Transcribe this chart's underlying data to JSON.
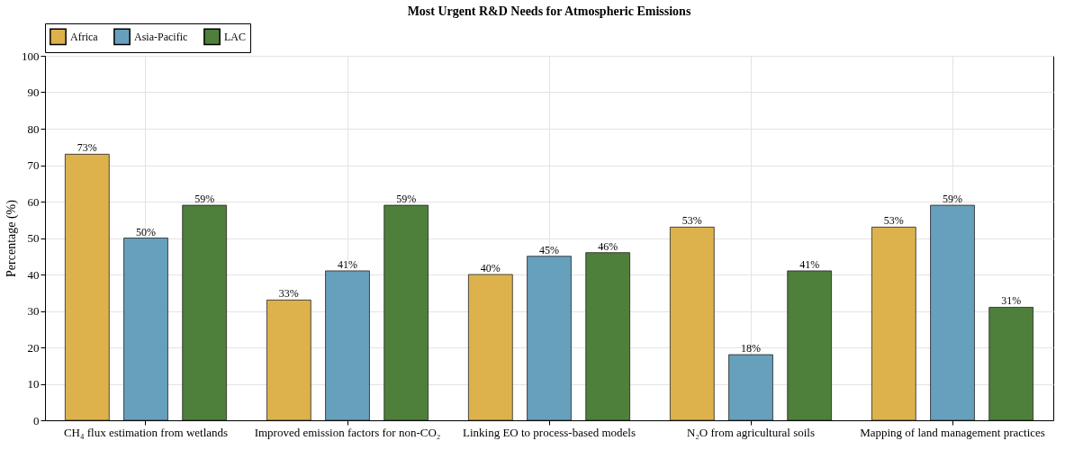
{
  "chart_data": {
    "type": "bar",
    "title": "Most Urgent R&D Needs for Atmospheric Emissions",
    "ylabel": "Percentage (%)",
    "categories": [
      "CH₄ flux estimation from wetlands",
      "Improved emission factors for non-CO₂",
      "Linking EO to process-based models",
      "N₂O from agricultural soils",
      "Mapping of land management practices"
    ],
    "series": [
      {
        "name": "Africa",
        "color": "#ddb24c",
        "values": [
          73,
          33,
          40,
          53,
          53
        ],
        "value_labels": [
          "73%",
          "33%",
          "40%",
          "53%",
          "53%"
        ]
      },
      {
        "name": "Asia-Pacific",
        "color": "#67a0bc",
        "values": [
          50,
          41,
          45,
          18,
          59
        ],
        "value_labels": [
          "50%",
          "41%",
          "45%",
          "18%",
          "59%"
        ]
      },
      {
        "name": "LAC",
        "color": "#4e7f3b",
        "values": [
          59,
          59,
          46,
          41,
          31
        ],
        "value_labels": [
          "59%",
          "59%",
          "46%",
          "41%",
          "31%"
        ]
      }
    ],
    "ylim": [
      0,
      100
    ],
    "yticks": [
      0,
      10,
      20,
      30,
      40,
      50,
      60,
      70,
      80,
      90,
      100
    ],
    "grid": true,
    "legend": "top"
  }
}
